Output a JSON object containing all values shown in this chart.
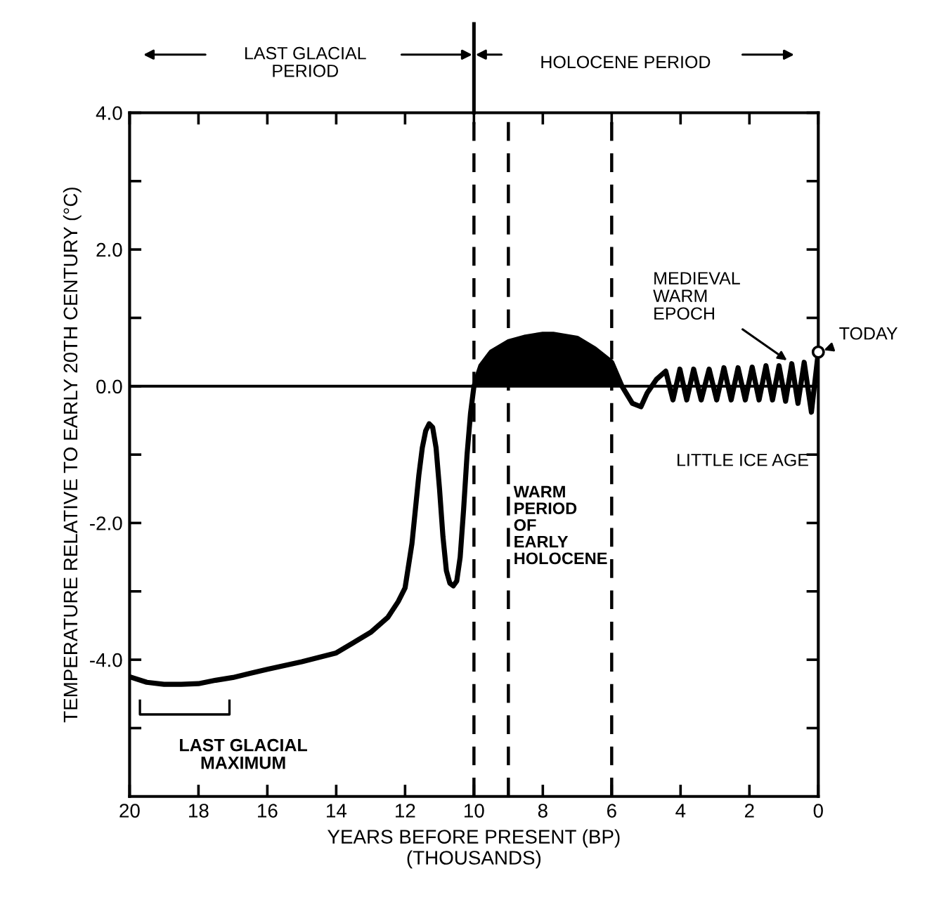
{
  "chart_data": {
    "type": "line",
    "xlabel": "YEARS BEFORE PRESENT (BP)\n(THOUSANDS)",
    "ylabel": "TEMPERATURE RELATIVE TO EARLY 20TH CENTURY (°C)",
    "xlim": [
      20,
      0
    ],
    "ylim": [
      -6,
      4
    ],
    "xticks": [
      20,
      18,
      16,
      14,
      12,
      10,
      8,
      6,
      4,
      2,
      0
    ],
    "yticks": [
      {
        "value": 4,
        "label": "4.0"
      },
      {
        "value": 3,
        "label": null
      },
      {
        "value": 2,
        "label": "2.0"
      },
      {
        "value": 1,
        "label": null
      },
      {
        "value": 0,
        "label": "0.0"
      },
      {
        "value": -1,
        "label": null
      },
      {
        "value": -2,
        "label": "-2.0"
      },
      {
        "value": -3,
        "label": null
      },
      {
        "value": -4,
        "label": "-4.0"
      },
      {
        "value": -5,
        "label": null
      }
    ],
    "grid": false,
    "series": [
      {
        "color": "#000000",
        "x": [
          20,
          19.5,
          19,
          18.5,
          18,
          17.5,
          17,
          16.5,
          16,
          15,
          14,
          13.5,
          13,
          12.5,
          12.2,
          12,
          11.8,
          11.6,
          11.5,
          11.4,
          11.3,
          11.2,
          11.1,
          11.0,
          10.9,
          10.8,
          10.7,
          10.6,
          10.5,
          10.4,
          10.3,
          10.2,
          10.1,
          10.0,
          9.8,
          9.5,
          9,
          8.5,
          8,
          7.7,
          7,
          6.5,
          6,
          5.7,
          5.4,
          5.15,
          4.97,
          4.7,
          4.43,
          4.22,
          4.02,
          3.82,
          3.62,
          3.4,
          3.17,
          2.95,
          2.74,
          2.53,
          2.33,
          2.12,
          1.92,
          1.72,
          1.52,
          1.33,
          1.14,
          0.95,
          0.77,
          0.59,
          0.41,
          0.2,
          0
        ],
        "values": [
          -4.25,
          -4.33,
          -4.36,
          -4.36,
          -4.35,
          -4.3,
          -4.26,
          -4.2,
          -4.14,
          -4.03,
          -3.9,
          -3.75,
          -3.6,
          -3.38,
          -3.15,
          -2.95,
          -2.3,
          -1.3,
          -0.9,
          -0.65,
          -0.55,
          -0.6,
          -0.9,
          -1.5,
          -2.2,
          -2.7,
          -2.88,
          -2.92,
          -2.85,
          -2.5,
          -1.8,
          -1.0,
          -0.4,
          0.0,
          0.3,
          0.5,
          0.65,
          0.72,
          0.76,
          0.76,
          0.7,
          0.55,
          0.35,
          0.0,
          -0.25,
          -0.3,
          -0.1,
          0.1,
          0.22,
          -0.2,
          0.25,
          -0.2,
          0.25,
          -0.2,
          0.25,
          -0.2,
          0.27,
          -0.2,
          0.27,
          -0.2,
          0.28,
          -0.2,
          0.3,
          -0.2,
          0.3,
          -0.22,
          0.33,
          -0.25,
          0.35,
          -0.38,
          0.5
        ]
      },
      {
        "type": "area",
        "color": "#000000",
        "x": [
          10.0,
          9.8,
          9.5,
          9,
          8.5,
          8,
          7.7,
          7,
          6.5,
          6,
          5.7
        ],
        "values": [
          0.0,
          0.3,
          0.5,
          0.65,
          0.72,
          0.76,
          0.76,
          0.7,
          0.55,
          0.35,
          0.0
        ]
      },
      {
        "type": "scatter",
        "color": "#000000",
        "marker": "circle",
        "x": [
          0
        ],
        "values": [
          0.5
        ]
      }
    ],
    "ref_lines": [
      {
        "axis": "y",
        "value": 0,
        "line_style": "solid"
      },
      {
        "axis": "x",
        "value": 10,
        "line_style": "dashed"
      },
      {
        "axis": "x",
        "value": 9,
        "line_style": "dashed"
      },
      {
        "axis": "x",
        "value": 6,
        "line_style": "dashed"
      }
    ],
    "annotations": [
      "LAST GLACIAL\nPERIOD",
      "HOLOCENE PERIOD",
      {
        "text": "MEDIEVAL\nWARM\nEPOCH",
        "x": 0.77,
        "y": 0.33
      },
      {
        "text": "TODAY",
        "x": 0,
        "y": 0.5
      },
      "LITTLE ICE AGE",
      "WARM\nPERIOD\nOF\nEARLY\nHOLOCENE",
      "LAST GLACIAL\nMAXIMUM"
    ]
  }
}
